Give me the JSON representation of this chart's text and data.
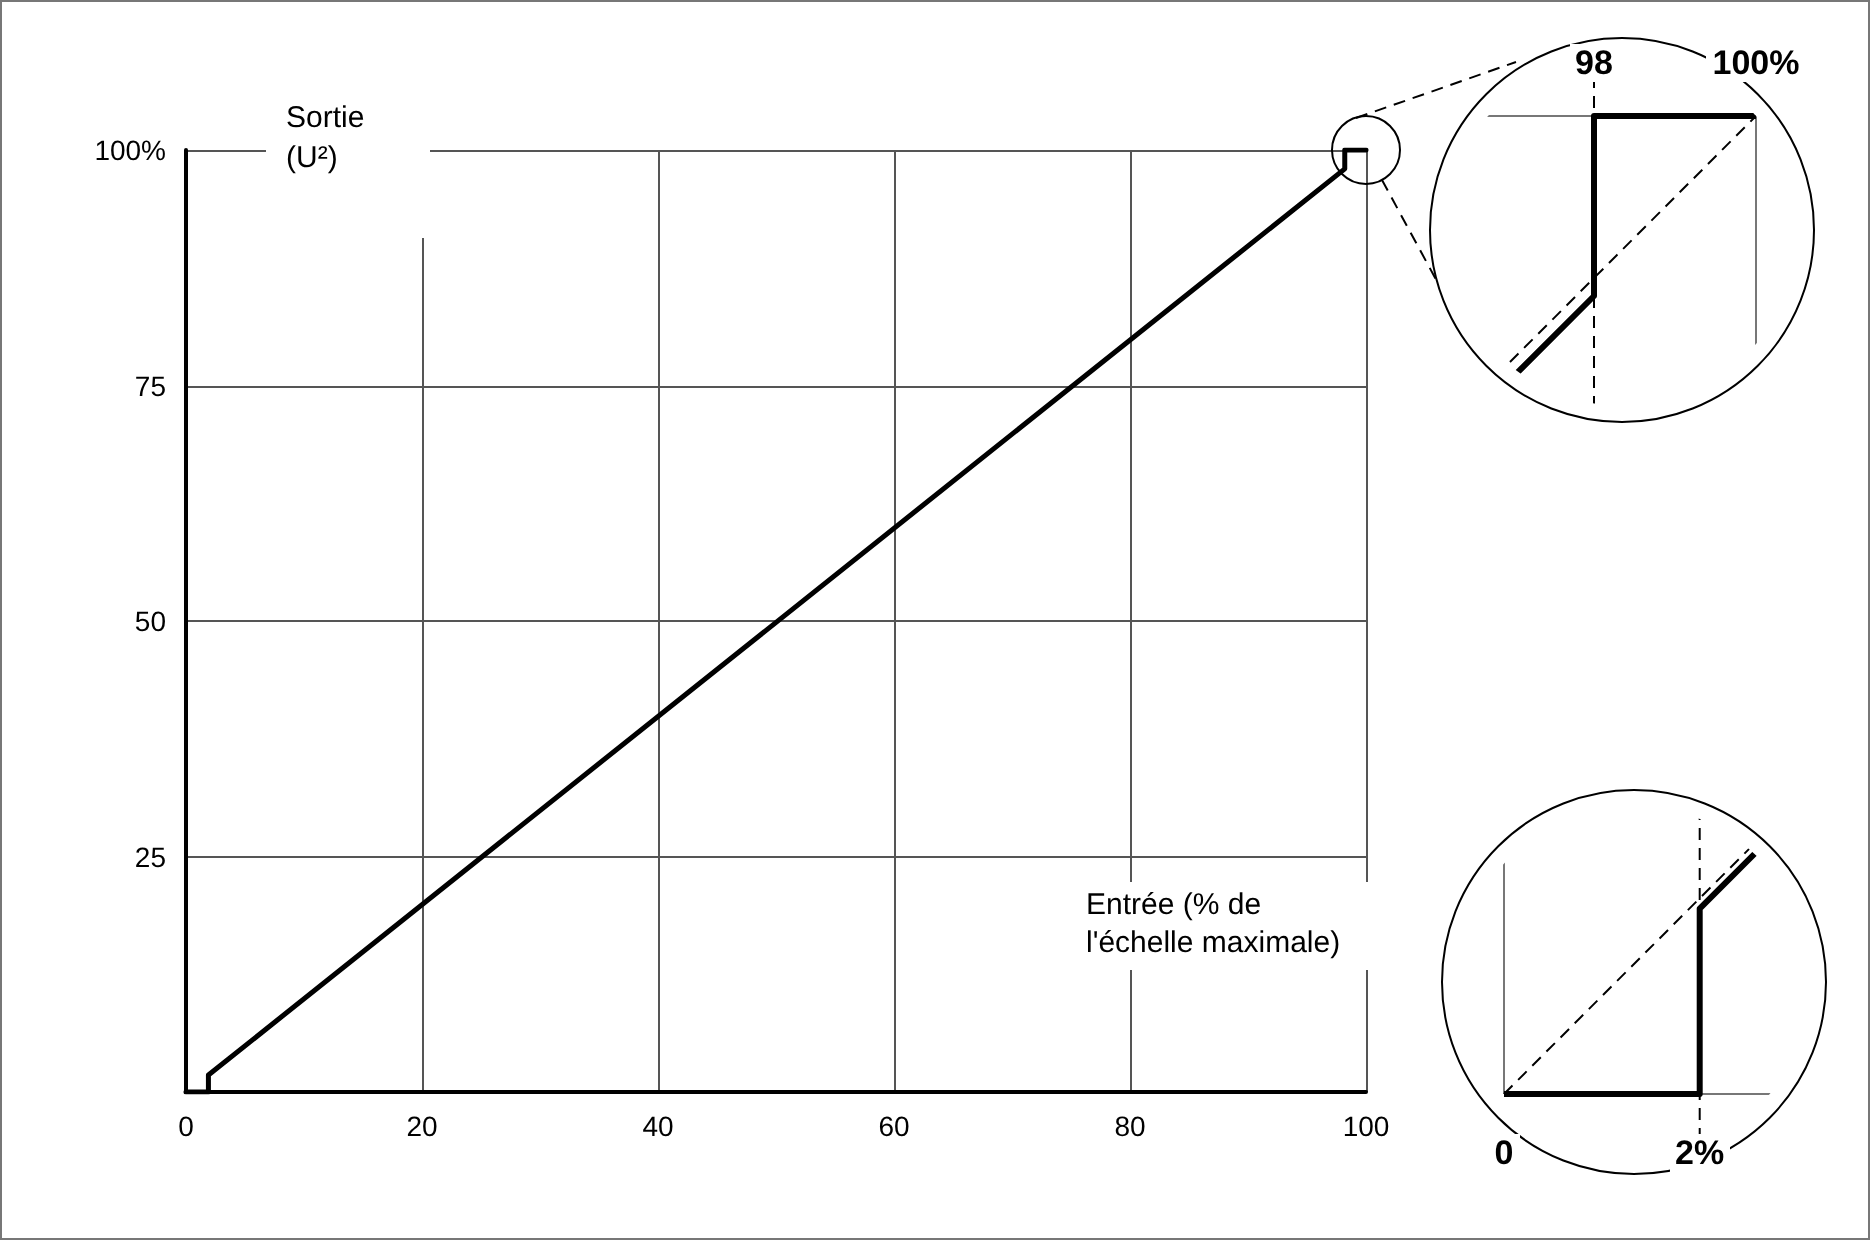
{
  "chart_data": {
    "type": "line",
    "xlabel": "Entrée (% de l'échelle maximale)",
    "ylabel": "Sortie (U²)",
    "xlim": [
      0,
      100
    ],
    "ylim": [
      0,
      100
    ],
    "xticks": [
      0,
      20,
      40,
      60,
      80,
      100
    ],
    "yticks": [
      {
        "value": 0,
        "label": null
      },
      25,
      50,
      75,
      {
        "value": 100,
        "label": "100%"
      }
    ],
    "grid": true,
    "series": [
      {
        "color": "#000000",
        "x": [
          0,
          1.9,
          1.9,
          98.2,
          98.2,
          100
        ],
        "values": [
          0,
          0,
          1.8,
          98,
          100,
          100
        ]
      }
    ],
    "annotations": [
      "98",
      "100%",
      "0",
      "2%"
    ]
  }
}
